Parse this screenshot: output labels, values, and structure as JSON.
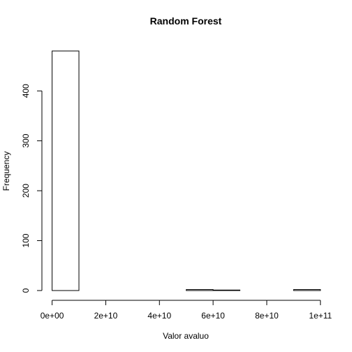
{
  "chart_data": {
    "type": "bar",
    "title": "Random Forest",
    "xlabel": "Valor avaluo",
    "ylabel": "Frequency",
    "bin_edges": [
      0,
      10000000000,
      20000000000,
      30000000000,
      40000000000,
      50000000000,
      60000000000,
      70000000000,
      80000000000,
      90000000000,
      100000000000
    ],
    "values": [
      480,
      0,
      0,
      0,
      0,
      2,
      1,
      0,
      0,
      2
    ],
    "xlim": [
      0,
      100000000000
    ],
    "ylim": [
      0,
      480
    ],
    "x_ticks": [
      0,
      20000000000,
      40000000000,
      60000000000,
      80000000000,
      100000000000
    ],
    "x_tick_labels": [
      "0e+00",
      "2e+10",
      "4e+10",
      "6e+10",
      "8e+10",
      "1e+11"
    ],
    "y_ticks": [
      0,
      100,
      200,
      300,
      400
    ],
    "y_tick_labels": [
      "0",
      "100",
      "200",
      "300",
      "400"
    ],
    "grid": false,
    "colors": {
      "bar_fill": "#ffffff",
      "bar_stroke": "#000000"
    }
  }
}
